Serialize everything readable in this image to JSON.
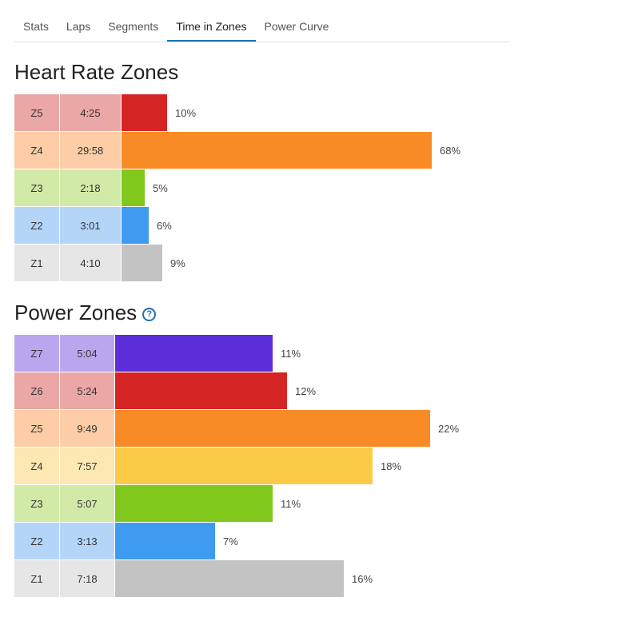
{
  "tabs": [
    {
      "label": "Stats",
      "active": false
    },
    {
      "label": "Laps",
      "active": false
    },
    {
      "label": "Segments",
      "active": false
    },
    {
      "label": "Time in Zones",
      "active": true
    },
    {
      "label": "Power Curve",
      "active": false
    }
  ],
  "heart_rate": {
    "title": "Heart Rate Zones",
    "zones": [
      {
        "zone": "Z5",
        "time": "4:25",
        "pct_label": "10%",
        "fraction": 0.1,
        "bar_color": "#d42424",
        "label_bg": "#eba6a6"
      },
      {
        "zone": "Z4",
        "time": "29:58",
        "pct_label": "68%",
        "fraction": 0.68,
        "bar_color": "#f98b27",
        "label_bg": "#fccda6"
      },
      {
        "zone": "Z3",
        "time": "2:18",
        "pct_label": "5%",
        "fraction": 0.05,
        "bar_color": "#80c91c",
        "label_bg": "#d2eaa8"
      },
      {
        "zone": "Z2",
        "time": "3:01",
        "pct_label": "6%",
        "fraction": 0.06,
        "bar_color": "#3f9bef",
        "label_bg": "#b4d5f8"
      },
      {
        "zone": "Z1",
        "time": "4:10",
        "pct_label": "9%",
        "fraction": 0.09,
        "bar_color": "#c3c3c3",
        "label_bg": "#e6e6e6"
      }
    ]
  },
  "power": {
    "title": "Power Zones",
    "help_icon": "help-circle-icon",
    "zones": [
      {
        "zone": "Z7",
        "time": "5:04",
        "pct_label": "11%",
        "fraction": 0.11,
        "bar_color": "#5c2ed9",
        "label_bg": "#baa6ef"
      },
      {
        "zone": "Z6",
        "time": "5:24",
        "pct_label": "12%",
        "fraction": 0.12,
        "bar_color": "#d42424",
        "label_bg": "#eba6a6"
      },
      {
        "zone": "Z5",
        "time": "9:49",
        "pct_label": "22%",
        "fraction": 0.22,
        "bar_color": "#f98b27",
        "label_bg": "#fccda6"
      },
      {
        "zone": "Z4",
        "time": "7:57",
        "pct_label": "18%",
        "fraction": 0.18,
        "bar_color": "#fbcb48",
        "label_bg": "#fde8b4"
      },
      {
        "zone": "Z3",
        "time": "5:07",
        "pct_label": "11%",
        "fraction": 0.11,
        "bar_color": "#80c91c",
        "label_bg": "#d2eaa8"
      },
      {
        "zone": "Z2",
        "time": "3:13",
        "pct_label": "7%",
        "fraction": 0.07,
        "bar_color": "#3f9bef",
        "label_bg": "#b4d5f8"
      },
      {
        "zone": "Z1",
        "time": "7:18",
        "pct_label": "16%",
        "fraction": 0.16,
        "bar_color": "#c3c3c3",
        "label_bg": "#e6e6e6"
      }
    ]
  }
}
